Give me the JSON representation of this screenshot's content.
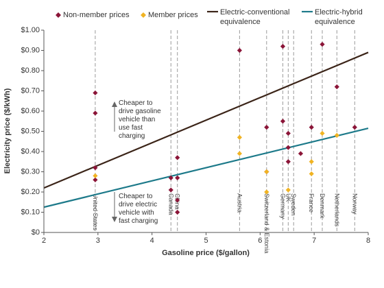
{
  "chart_data": {
    "type": "scatter",
    "xlabel": "Gasoline price ($/gallon)",
    "ylabel": "Electricity price ($/kWh)",
    "xlim": [
      2,
      8
    ],
    "ylim": [
      0,
      1.0
    ],
    "x_ticks": [
      "2",
      "3",
      "4",
      "5",
      "6",
      "7",
      "8"
    ],
    "y_ticks": [
      "$0",
      "$0.10",
      "$0.20",
      "$0.30",
      "$0.40",
      "$0.50",
      "$0.60",
      "$0.70",
      "$0.80",
      "$0.90",
      "$1.00"
    ],
    "grid": false,
    "legend_position": "top",
    "colors": {
      "non_member": "#8b1538",
      "member": "#f0b323",
      "conventional": "#3b2418",
      "hybrid": "#1d7a8a",
      "guide": "#9a9a9a"
    },
    "series": [
      {
        "name": "Non-member prices",
        "points": [
          {
            "x": 2.95,
            "y": 0.69
          },
          {
            "x": 2.95,
            "y": 0.59
          },
          {
            "x": 2.95,
            "y": 0.32
          },
          {
            "x": 2.95,
            "y": 0.26
          },
          {
            "x": 4.35,
            "y": 0.27
          },
          {
            "x": 4.35,
            "y": 0.21
          },
          {
            "x": 4.47,
            "y": 0.37
          },
          {
            "x": 4.47,
            "y": 0.27
          },
          {
            "x": 4.47,
            "y": 0.16
          },
          {
            "x": 4.47,
            "y": 0.1
          },
          {
            "x": 5.62,
            "y": 0.9
          },
          {
            "x": 6.12,
            "y": 0.52
          },
          {
            "x": 6.12,
            "y": 0.3
          },
          {
            "x": 6.42,
            "y": 0.92
          },
          {
            "x": 6.42,
            "y": 0.55
          },
          {
            "x": 6.52,
            "y": 0.49
          },
          {
            "x": 6.52,
            "y": 0.42
          },
          {
            "x": 6.52,
            "y": 0.35
          },
          {
            "x": 6.75,
            "y": 0.39
          },
          {
            "x": 6.95,
            "y": 0.52
          },
          {
            "x": 7.15,
            "y": 0.93
          },
          {
            "x": 7.42,
            "y": 0.72
          },
          {
            "x": 7.75,
            "y": 0.52
          }
        ]
      },
      {
        "name": "Member prices",
        "points": [
          {
            "x": 2.95,
            "y": 0.28
          },
          {
            "x": 5.62,
            "y": 0.47
          },
          {
            "x": 5.62,
            "y": 0.39
          },
          {
            "x": 6.12,
            "y": 0.3
          },
          {
            "x": 6.12,
            "y": 0.2
          },
          {
            "x": 6.52,
            "y": 0.21
          },
          {
            "x": 6.95,
            "y": 0.35
          },
          {
            "x": 6.95,
            "y": 0.29
          },
          {
            "x": 7.15,
            "y": 0.49
          },
          {
            "x": 7.42,
            "y": 0.48
          }
        ]
      }
    ],
    "lines": [
      {
        "name": "Electric-conventional equivalence",
        "x": [
          2,
          8
        ],
        "y": [
          0.22,
          0.89
        ]
      },
      {
        "name": "Electric-hybrid equivalence",
        "x": [
          2,
          8
        ],
        "y": [
          0.125,
          0.515
        ]
      }
    ],
    "countries": [
      {
        "x": 2.95,
        "label": "United States"
      },
      {
        "x": 4.35,
        "label": "Canada"
      },
      {
        "x": 4.47,
        "label": "China"
      },
      {
        "x": 5.62,
        "label": "Austria"
      },
      {
        "x": 6.12,
        "label": "Switzerland & Estonia"
      },
      {
        "x": 6.42,
        "label": "Germany"
      },
      {
        "x": 6.52,
        "label": "UK"
      },
      {
        "x": 6.62,
        "label": "Sweden"
      },
      {
        "x": 6.95,
        "label": "France"
      },
      {
        "x": 7.15,
        "label": "Denmark"
      },
      {
        "x": 7.42,
        "label": "Netherlands"
      },
      {
        "x": 7.75,
        "label": "Norway"
      }
    ],
    "annotations": [
      {
        "lines": [
          "Cheaper to",
          "drive gasoline",
          "vehicle than",
          "use fast",
          "charging"
        ]
      },
      {
        "lines": [
          "Cheaper to",
          "drive electric",
          "vehicle with",
          "fast charging"
        ]
      }
    ]
  }
}
